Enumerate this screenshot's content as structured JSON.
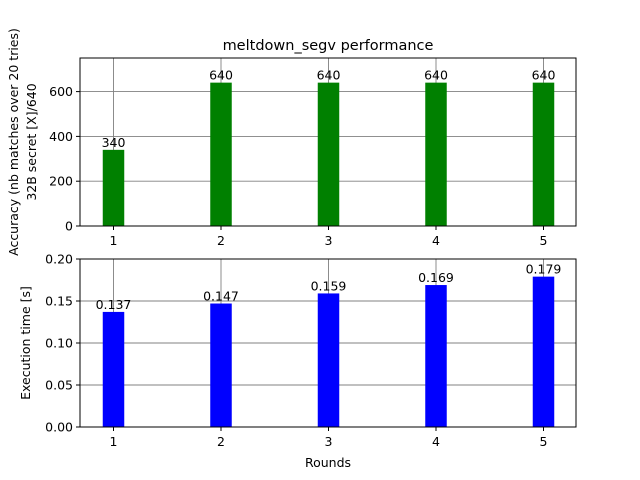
{
  "figure": {
    "title": "meltdown_segv performance",
    "xlabel": "Rounds"
  },
  "chart_data": [
    {
      "type": "bar",
      "title": "meltdown_segv performance",
      "xlabel": "",
      "ylabel_lines": [
        "Accuracy (nb matches over 20 tries)",
        "32B secret    [X]/640"
      ],
      "categories": [
        "1",
        "2",
        "3",
        "4",
        "5"
      ],
      "values": [
        340,
        640,
        640,
        640,
        640
      ],
      "data_labels": [
        "340",
        "640",
        "640",
        "640",
        "640"
      ],
      "ylim": [
        0,
        750
      ],
      "yticks": [
        0,
        200,
        400,
        600
      ],
      "ytick_labels": [
        "0",
        "200",
        "400",
        "600"
      ],
      "color": "#008000",
      "grid": true
    },
    {
      "type": "bar",
      "title": "",
      "xlabel": "Rounds",
      "ylabel_lines": [
        "Execution time [s]"
      ],
      "categories": [
        "1",
        "2",
        "3",
        "4",
        "5"
      ],
      "values": [
        0.137,
        0.147,
        0.159,
        0.169,
        0.179
      ],
      "data_labels": [
        "0.137",
        "0.147",
        "0.159",
        "0.169",
        "0.179"
      ],
      "ylim": [
        0,
        0.2
      ],
      "yticks": [
        0,
        0.05,
        0.1,
        0.15,
        0.2
      ],
      "ytick_labels": [
        "0.00",
        "0.05",
        "0.10",
        "0.15",
        "0.20"
      ],
      "color": "#0000ff",
      "grid": true
    }
  ]
}
